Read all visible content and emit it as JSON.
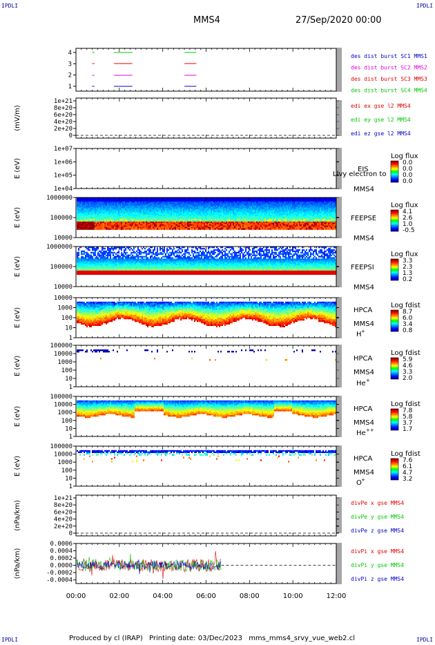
{
  "header": {
    "corner_tl": "IPDLI",
    "corner_tr": "IPDLI",
    "corner_bl": "IPDLI",
    "corner_br": "IPDLI",
    "spacecraft": "MMS4",
    "datetime": "27/Sep/2020 00:00"
  },
  "footer": {
    "produced_by": "Produced by cl (IRAP)",
    "printing_date": "Printing date: 03/Dec/2023",
    "filename": "mms_mms4_srvy_vue_web2.cl"
  },
  "colors": {
    "red": "#e00000",
    "green": "#00c800",
    "blue": "#0000c8",
    "magenta": "#e000e0"
  },
  "chart_data": {
    "type": "multi-panel time series",
    "x_ticks": [
      "00:00",
      "02:00",
      "04:00",
      "06:00",
      "08:00",
      "10:00",
      "12:00"
    ],
    "xlim_hours": [
      0,
      12
    ],
    "panels": [
      {
        "id": "burst",
        "ylabel": "",
        "yticks": [
          "4",
          "3",
          "2",
          "1"
        ],
        "legend": [
          {
            "text": "des dist burst SC1 MMS1",
            "color": "#0000c8"
          },
          {
            "text": "des dist burst SC2 MMS2",
            "color": "#e000e0"
          },
          {
            "text": "des dist burst SC3 MMS3",
            "color": "#e00000"
          },
          {
            "text": "des dist burst SC4 MMS4",
            "color": "#00c800"
          }
        ],
        "intervals_hours": [
          [
            0.75,
            0.85
          ],
          [
            1.75,
            2.6
          ],
          [
            5.0,
            5.55
          ]
        ]
      },
      {
        "id": "edi",
        "ylabel": "(mV/m)",
        "yticks": [
          "1e+21",
          "8e+20",
          "6e+20",
          "4e+20",
          "2e+20",
          "0"
        ],
        "legend": [
          {
            "text": "edi ex gse l2 MMS4",
            "color": "#e00000"
          },
          {
            "text": "edi ey gse l2 MMS4",
            "color": "#00c800"
          },
          {
            "text": "edi ez gse l2 MMS4",
            "color": "#0000c8"
          }
        ]
      },
      {
        "id": "eis",
        "ylabel": "E (eV)",
        "yticks": [
          "1e+07",
          "1e+06",
          "1e+05",
          "1e+04"
        ],
        "inst": "EIS",
        "sc": "MMS4",
        "overlay": "Llvy electron to",
        "cb_title": "Log flux",
        "cb_ticks": [
          "0.0",
          "0.0",
          "0.0",
          "0.0"
        ]
      },
      {
        "id": "feepse",
        "ylabel": "E (eV)",
        "yticks": [
          "1000000",
          "100000",
          "10000"
        ],
        "inst": "FEEPSE",
        "sc": "MMS4",
        "cb_title": "Log flux",
        "cb_ticks": [
          "4.1",
          "2.6",
          "1.0",
          "-0.5"
        ]
      },
      {
        "id": "feepsi",
        "ylabel": "E (eV)",
        "yticks": [
          "1000000",
          "100000",
          "10000"
        ],
        "inst": "FEEPSI",
        "sc": "MMS4",
        "cb_title": "Log flux",
        "cb_ticks": [
          "3.3",
          "2.3",
          "1.3",
          "0.2"
        ]
      },
      {
        "id": "hpca_h",
        "ylabel": "E (eV)",
        "yticks": [
          "10000",
          "1000",
          "100",
          "10",
          "1"
        ],
        "inst": "HPCA",
        "sc": "MMS4",
        "species": "H",
        "species_sup": "+",
        "cb_title": "Log fdist",
        "cb_ticks": [
          "8.7",
          "6.0",
          "3.4",
          "0.8"
        ]
      },
      {
        "id": "hpca_he",
        "ylabel": "E (eV)",
        "yticks": [
          "100000",
          "10000",
          "1000",
          "100",
          "10",
          "1"
        ],
        "inst": "HPCA",
        "sc": "MMS4",
        "species": "He",
        "species_sup": "+",
        "cb_title": "Log fdist",
        "cb_ticks": [
          "5.9",
          "4.6",
          "3.3",
          "2.0"
        ]
      },
      {
        "id": "hpca_he2",
        "ylabel": "E (eV)",
        "yticks": [
          "100000",
          "10000",
          "1000",
          "100",
          "10",
          "1"
        ],
        "inst": "HPCA",
        "sc": "MMS4",
        "species": "He",
        "species_sup": "++",
        "cb_title": "Log fdist",
        "cb_ticks": [
          "7.8",
          "5.8",
          "3.7",
          "1.7"
        ]
      },
      {
        "id": "hpca_o",
        "ylabel": "E (eV)",
        "yticks": [
          "100000",
          "10000",
          "1000",
          "100",
          "10",
          "1"
        ],
        "inst": "HPCA",
        "sc": "MMS4",
        "species": "O",
        "species_sup": "+",
        "cb_title": "Log fdist",
        "cb_ticks": [
          "7.6",
          "6.1",
          "4.7",
          "3.2"
        ]
      },
      {
        "id": "divpe",
        "ylabel": "(nPa/km)",
        "yticks": [
          "1e+21",
          "8e+20",
          "6e+20",
          "4e+20",
          "2e+20",
          "0"
        ],
        "legend": [
          {
            "text": "divPe x gse MMS4",
            "color": "#e00000"
          },
          {
            "text": "divPe y gse MMS4",
            "color": "#00c800"
          },
          {
            "text": "divPe z gse MMS4",
            "color": "#0000c8"
          }
        ]
      },
      {
        "id": "divpi",
        "ylabel": "(nPa/km)",
        "yticks": [
          "0.0006",
          "0.0004",
          "0.0002",
          "0.0000",
          "-0.0002",
          "-0.0004"
        ],
        "ylim": [
          -0.0005,
          0.0006
        ],
        "data_end_hours": 6.7,
        "legend": [
          {
            "text": "divPi x gse MMS4",
            "color": "#e00000"
          },
          {
            "text": "divPi y gse MMS4",
            "color": "#00c800"
          },
          {
            "text": "divPi z gse MMS4",
            "color": "#0000c8"
          }
        ]
      }
    ]
  }
}
